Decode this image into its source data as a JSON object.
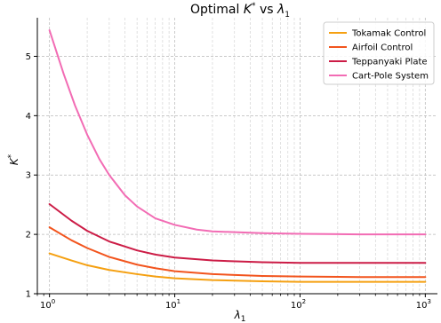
{
  "chart_data": {
    "type": "line",
    "title_main": "Optimal ",
    "title_sym": "K",
    "title_sup": "*",
    "title_vs": " vs ",
    "title_lambda": "λ",
    "title_sub": "1",
    "xlabel_sym": "λ",
    "xlabel_sub": "1",
    "ylabel_sym": "K",
    "ylabel_sup": "*",
    "x_scale": "log",
    "xlim": [
      0.8,
      1250
    ],
    "ylim": [
      1.0,
      5.65
    ],
    "x_ticks": [
      {
        "value": 1,
        "base": "10",
        "exp": "0"
      },
      {
        "value": 10,
        "base": "10",
        "exp": "1"
      },
      {
        "value": 100,
        "base": "10",
        "exp": "2"
      },
      {
        "value": 1000,
        "base": "10",
        "exp": "3"
      }
    ],
    "y_ticks": [
      1,
      2,
      3,
      4,
      5
    ],
    "grid": "on (major and minor, dashed)",
    "legend_position": "top-right",
    "series": [
      {
        "name": "Tokamak Control",
        "color": "#f5a011",
        "x": [
          1,
          1.5,
          2,
          3,
          5,
          7,
          10,
          20,
          50,
          100,
          300,
          1000
        ],
        "y": [
          1.68,
          1.56,
          1.48,
          1.4,
          1.33,
          1.29,
          1.26,
          1.23,
          1.21,
          1.2,
          1.2,
          1.2
        ]
      },
      {
        "name": "Airfoil Control",
        "color": "#f2541d",
        "x": [
          1,
          1.5,
          2,
          3,
          5,
          7,
          10,
          20,
          50,
          100,
          300,
          1000
        ],
        "y": [
          2.12,
          1.9,
          1.77,
          1.62,
          1.49,
          1.43,
          1.38,
          1.33,
          1.3,
          1.29,
          1.28,
          1.28
        ]
      },
      {
        "name": "Teppanyaki Plate",
        "color": "#cc1c46",
        "x": [
          1,
          1.5,
          2,
          3,
          5,
          7,
          10,
          20,
          50,
          100,
          300,
          1000
        ],
        "y": [
          2.51,
          2.23,
          2.06,
          1.88,
          1.73,
          1.66,
          1.61,
          1.56,
          1.53,
          1.52,
          1.52,
          1.52
        ]
      },
      {
        "name": "Cart-Pole System",
        "color": "#f26cb4",
        "x": [
          1,
          1.3,
          1.6,
          2,
          2.5,
          3,
          4,
          5,
          7,
          10,
          15,
          20,
          50,
          100,
          300,
          1000
        ],
        "y": [
          5.44,
          4.7,
          4.17,
          3.68,
          3.27,
          3.0,
          2.66,
          2.47,
          2.27,
          2.16,
          2.08,
          2.05,
          2.02,
          2.01,
          2.0,
          2.0
        ]
      }
    ]
  }
}
